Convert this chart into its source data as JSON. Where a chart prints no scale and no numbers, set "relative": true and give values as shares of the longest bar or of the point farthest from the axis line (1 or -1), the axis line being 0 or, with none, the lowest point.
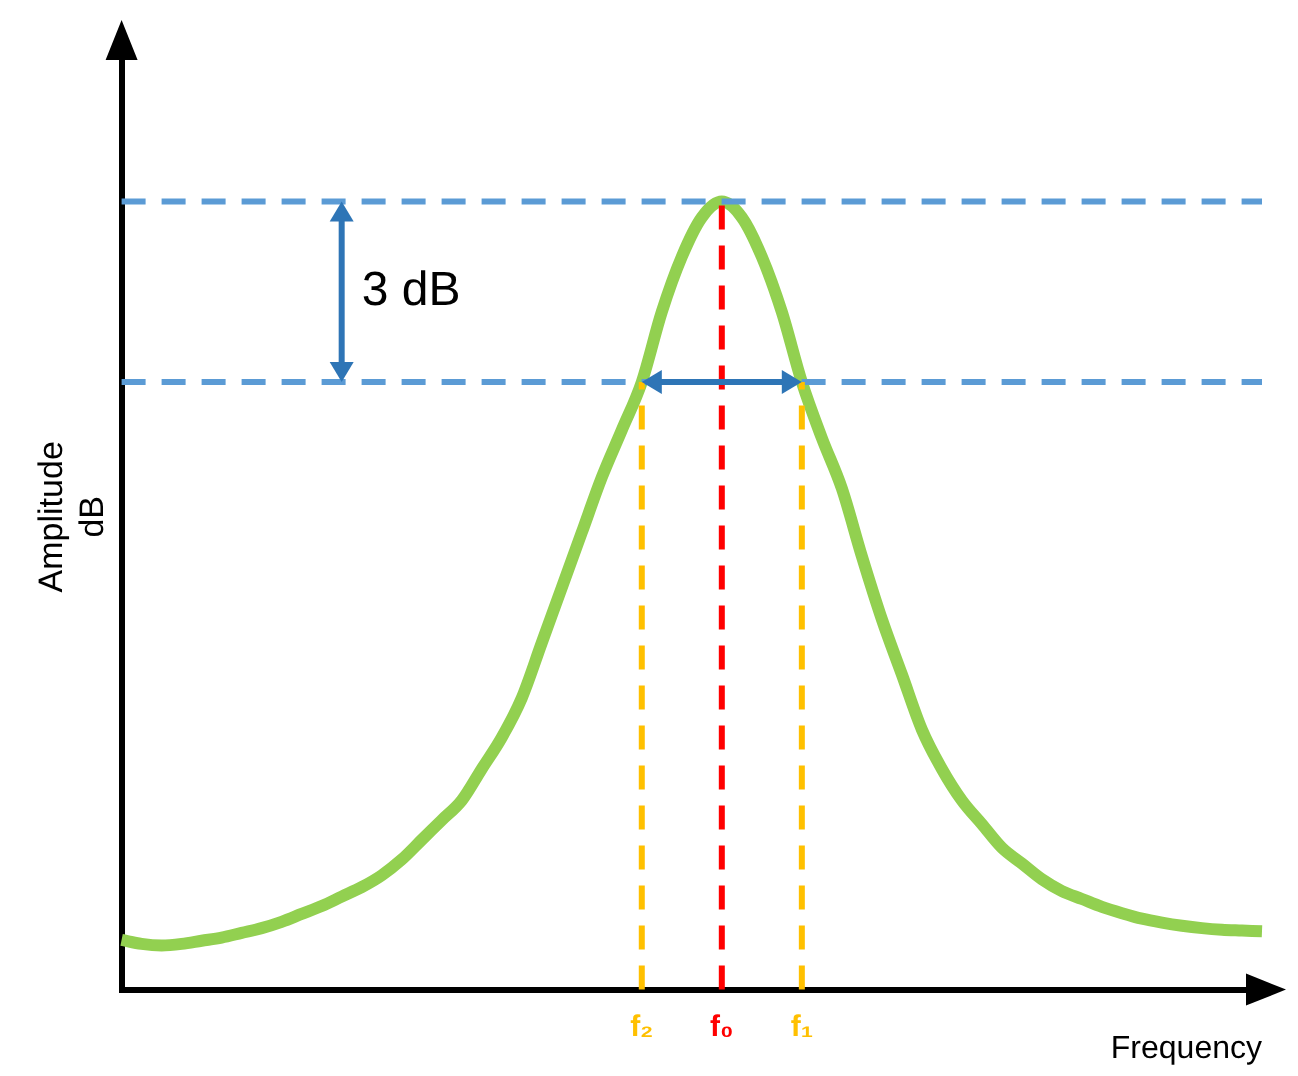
{
  "chart_data": {
    "type": "line",
    "relative": true,
    "categories": [
      null,
      null,
      null,
      null,
      null,
      null,
      null,
      null,
      null,
      null,
      null,
      null,
      null,
      null,
      null,
      null,
      null,
      null,
      null,
      null,
      null,
      null,
      null,
      null,
      null,
      null,
      "f₂",
      null,
      null,
      null,
      "f₀",
      null,
      null,
      null,
      "f₁",
      null,
      null,
      null,
      null,
      null,
      null,
      null,
      null,
      null,
      null,
      null,
      null,
      null,
      null,
      null,
      null,
      null,
      null,
      null,
      null,
      null,
      null,
      null
    ],
    "series": [
      {
        "color": "#92d050",
        "values": [
          0.063,
          0.058,
          0.056,
          0.058,
          0.062,
          0.066,
          0.072,
          0.078,
          0.086,
          0.096,
          0.106,
          0.118,
          0.13,
          0.145,
          0.165,
          0.19,
          0.215,
          0.24,
          0.28,
          0.32,
          0.37,
          0.44,
          0.51,
          0.58,
          0.65,
          0.71,
          0.771,
          0.86,
          0.93,
          0.98,
          1,
          0.98,
          0.93,
          0.86,
          0.771,
          0.7,
          0.636,
          0.55,
          0.47,
          0.4,
          0.33,
          0.28,
          0.24,
          0.21,
          0.18,
          0.16,
          0.14,
          0.125,
          0.115,
          0.105,
          0.097,
          0.09,
          0.085,
          0.081,
          0.078,
          0.076,
          0.075,
          0.074
        ]
      }
    ],
    "xlabel": "Frequency",
    "ylabel": "Amplitude\ndB",
    "ref_lines": [
      {
        "axis": "y",
        "value": 1,
        "color": "#5b9bd5",
        "line_style": "dashed"
      },
      {
        "axis": "y",
        "value": 0.771,
        "color": "#5b9bd5",
        "line_style": "dashed"
      },
      {
        "axis": "x",
        "value": "f₂",
        "color": "#ffc000",
        "line_style": "dashed"
      },
      {
        "axis": "x",
        "value": "f₀",
        "color": "#ff0000",
        "line_style": "dashed"
      },
      {
        "axis": "x",
        "value": "f₁",
        "color": "#ffc000",
        "line_style": "dashed"
      }
    ],
    "annotations": [
      "3 dB"
    ],
    "grid": false,
    "legend": false,
    "marker": "none",
    "line_style": "solid"
  }
}
